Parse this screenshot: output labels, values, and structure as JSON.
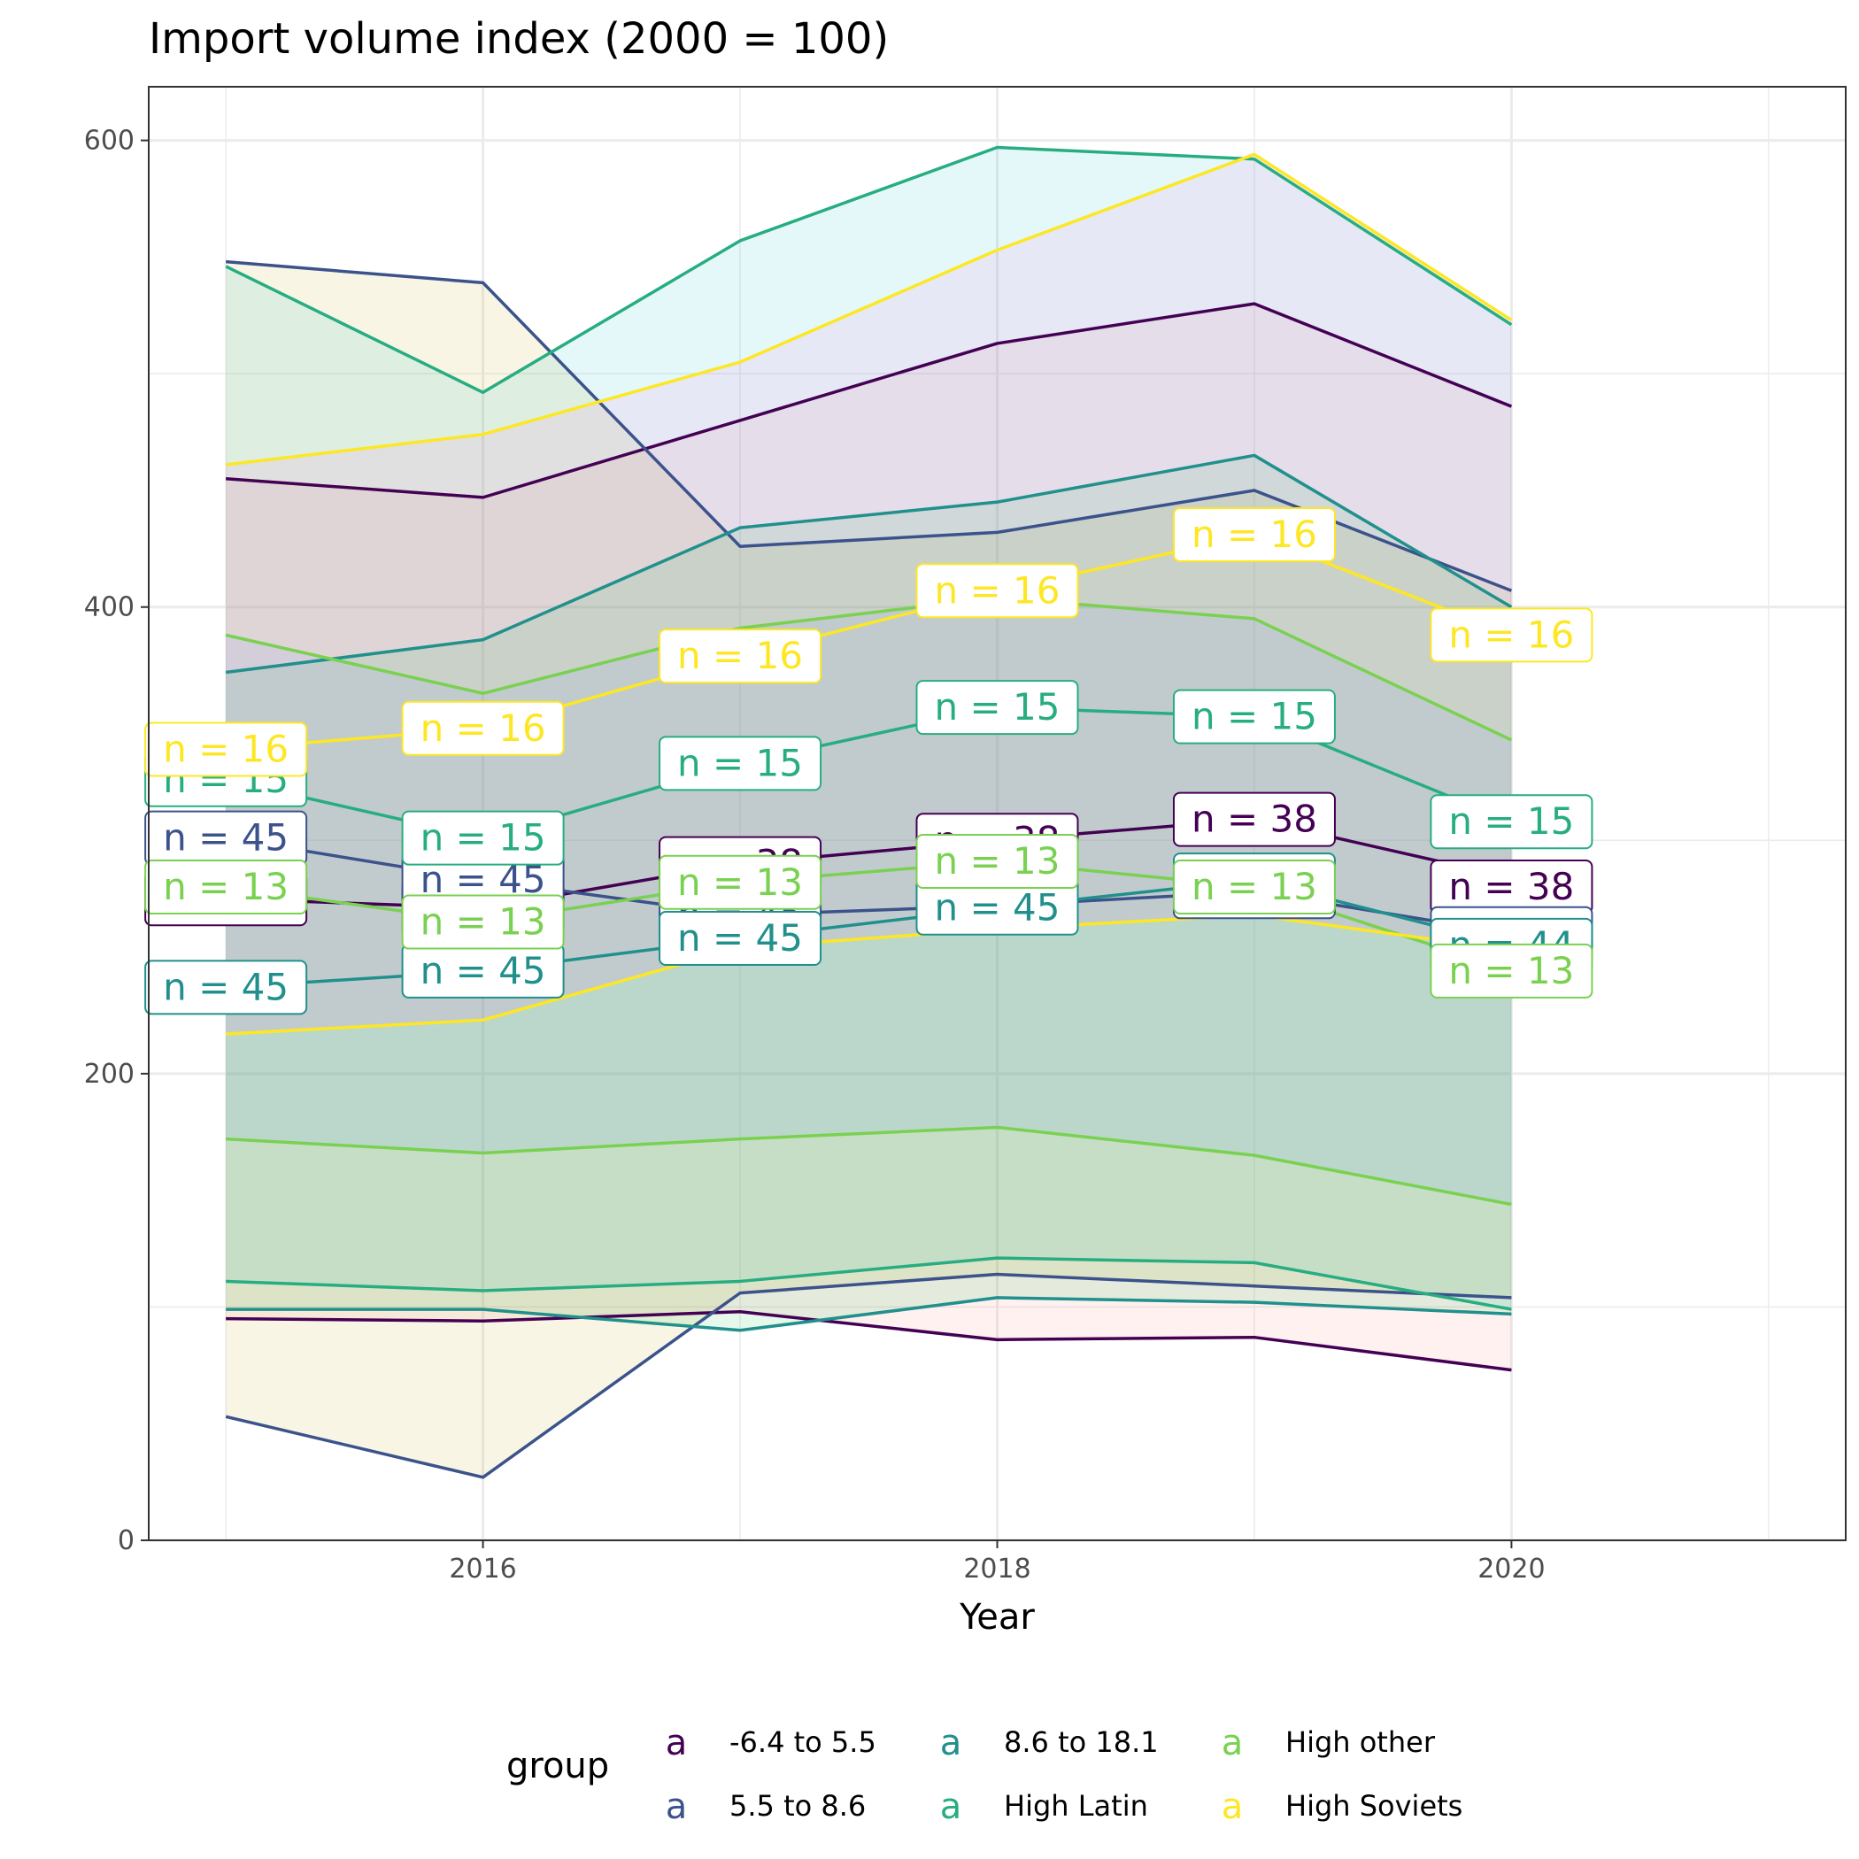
{
  "chart_data": {
    "type": "area",
    "title": "Import volume index (2000 = 100)",
    "xlabel": "Year",
    "ylabel": "",
    "x": [
      2015,
      2016,
      2017,
      2018,
      2019,
      2020
    ],
    "xlim": [
      2014.7,
      2021.3
    ],
    "ylim": [
      0,
      623
    ],
    "x_ticks": [
      2016,
      2018,
      2020
    ],
    "x_tick_labels": [
      "2016",
      "2018",
      "2020"
    ],
    "x_minor_ticks": [
      2015,
      2017,
      2019,
      2021
    ],
    "y_ticks": [
      0,
      200,
      400,
      600
    ],
    "y_tick_labels": [
      "0",
      "200",
      "400",
      "600"
    ],
    "y_minor_ticks": [
      100,
      300,
      500
    ],
    "grid": true,
    "legend_position": "bottom",
    "legend_title": "group",
    "legend_key_glyph": "a",
    "series": [
      {
        "name": "-6.4 to 5.5",
        "color": "#440154",
        "fill": "#F8766D",
        "band": {
          "upper": [
            455,
            447,
            480,
            513,
            530,
            486
          ],
          "lower": [
            95,
            94,
            98,
            86,
            87,
            73
          ]
        },
        "line": [
          275,
          271,
          290,
          300,
          309,
          284
        ],
        "label": "n = 38",
        "label_points": [
          {
            "x": 2015,
            "y": 275,
            "text": "n = 38"
          },
          {
            "x": 2016,
            "y": 271,
            "text": "n = 38"
          },
          {
            "x": 2017,
            "y": 290,
            "text": "n = 38"
          },
          {
            "x": 2018,
            "y": 300,
            "text": "n = 38"
          },
          {
            "x": 2019,
            "y": 309,
            "text": "n = 38"
          },
          {
            "x": 2020,
            "y": 280,
            "text": "n = 38"
          }
        ]
      },
      {
        "name": "5.5 to 8.6",
        "color": "#3B528B",
        "fill": "#B79F00",
        "band": {
          "upper": [
            548,
            539,
            426,
            432,
            450,
            407
          ],
          "lower": [
            53,
            27,
            106,
            114,
            109,
            104
          ]
        },
        "line": [
          301,
          283,
          268,
          272,
          278,
          260
        ],
        "label": "n = 45",
        "label_points": [
          {
            "x": 2015,
            "y": 301,
            "text": "n = 45"
          },
          {
            "x": 2016,
            "y": 283,
            "text": "n = 45"
          },
          {
            "x": 2017,
            "y": 268,
            "text": "n = 45"
          },
          {
            "x": 2018,
            "y": 272,
            "text": "n = 45"
          },
          {
            "x": 2019,
            "y": 278,
            "text": "n = 44"
          },
          {
            "x": 2020,
            "y": 260,
            "text": "n = 44"
          }
        ]
      },
      {
        "name": "8.6 to 18.1",
        "color": "#21908C",
        "fill": "#00BA38",
        "band": {
          "upper": [
            372,
            386,
            434,
            445,
            465,
            400
          ],
          "lower": [
            99,
            99,
            90,
            104,
            102,
            97
          ]
        },
        "line": [
          237,
          244,
          258,
          271,
          283,
          255
        ],
        "label": "n = 45",
        "label_points": [
          {
            "x": 2015,
            "y": 237,
            "text": "n = 45"
          },
          {
            "x": 2016,
            "y": 244,
            "text": "n = 45"
          },
          {
            "x": 2017,
            "y": 258,
            "text": "n = 45"
          },
          {
            "x": 2018,
            "y": 271,
            "text": "n = 45"
          },
          {
            "x": 2019,
            "y": 283,
            "text": "n = 44"
          },
          {
            "x": 2020,
            "y": 255,
            "text": "n = 44"
          }
        ]
      },
      {
        "name": "High Latin",
        "color": "#27AD81",
        "fill": "#00BFC4",
        "band": {
          "upper": [
            546,
            492,
            557,
            597,
            592,
            521
          ],
          "lower": [
            111,
            107,
            111,
            121,
            119,
            99
          ]
        },
        "line": [
          326,
          301,
          333,
          357,
          353,
          308
        ],
        "label": "n = 15",
        "label_points": [
          {
            "x": 2015,
            "y": 326,
            "text": "n = 15"
          },
          {
            "x": 2016,
            "y": 301,
            "text": "n = 15"
          },
          {
            "x": 2017,
            "y": 333,
            "text": "n = 15"
          },
          {
            "x": 2018,
            "y": 357,
            "text": "n = 15"
          },
          {
            "x": 2019,
            "y": 353,
            "text": "n = 15"
          },
          {
            "x": 2020,
            "y": 308,
            "text": "n = 15"
          }
        ]
      },
      {
        "name": "High other",
        "color": "#7AD151",
        "fill": "#619CFF",
        "band": {
          "upper": [
            388,
            363,
            391,
            404,
            395,
            343
          ],
          "lower": [
            172,
            166,
            172,
            177,
            165,
            144
          ]
        },
        "line": [
          280,
          265,
          282,
          291,
          280,
          244
        ],
        "label": "n = 13",
        "label_points": [
          {
            "x": 2015,
            "y": 280,
            "text": "n = 13"
          },
          {
            "x": 2016,
            "y": 265,
            "text": "n = 13"
          },
          {
            "x": 2017,
            "y": 282,
            "text": "n = 13"
          },
          {
            "x": 2018,
            "y": 291,
            "text": "n = 13"
          },
          {
            "x": 2019,
            "y": 280,
            "text": "n = 13"
          },
          {
            "x": 2020,
            "y": 244,
            "text": "n = 13"
          }
        ]
      },
      {
        "name": "High Soviets",
        "color": "#FDE725",
        "fill": "#F564E3",
        "band": {
          "upper": [
            461,
            474,
            505,
            553,
            594,
            523
          ],
          "lower": [
            217,
            223,
            254,
            262,
            268,
            253
          ]
        },
        "line": [
          339,
          348,
          379,
          407,
          431,
          388
        ],
        "label": "n = 16",
        "label_points": [
          {
            "x": 2015,
            "y": 339,
            "text": "n = 16"
          },
          {
            "x": 2016,
            "y": 348,
            "text": "n = 16"
          },
          {
            "x": 2017,
            "y": 379,
            "text": "n = 16"
          },
          {
            "x": 2018,
            "y": 407,
            "text": "n = 16"
          },
          {
            "x": 2019,
            "y": 431,
            "text": "n = 16"
          },
          {
            "x": 2020,
            "y": 388,
            "text": "n = 16"
          }
        ]
      }
    ]
  }
}
